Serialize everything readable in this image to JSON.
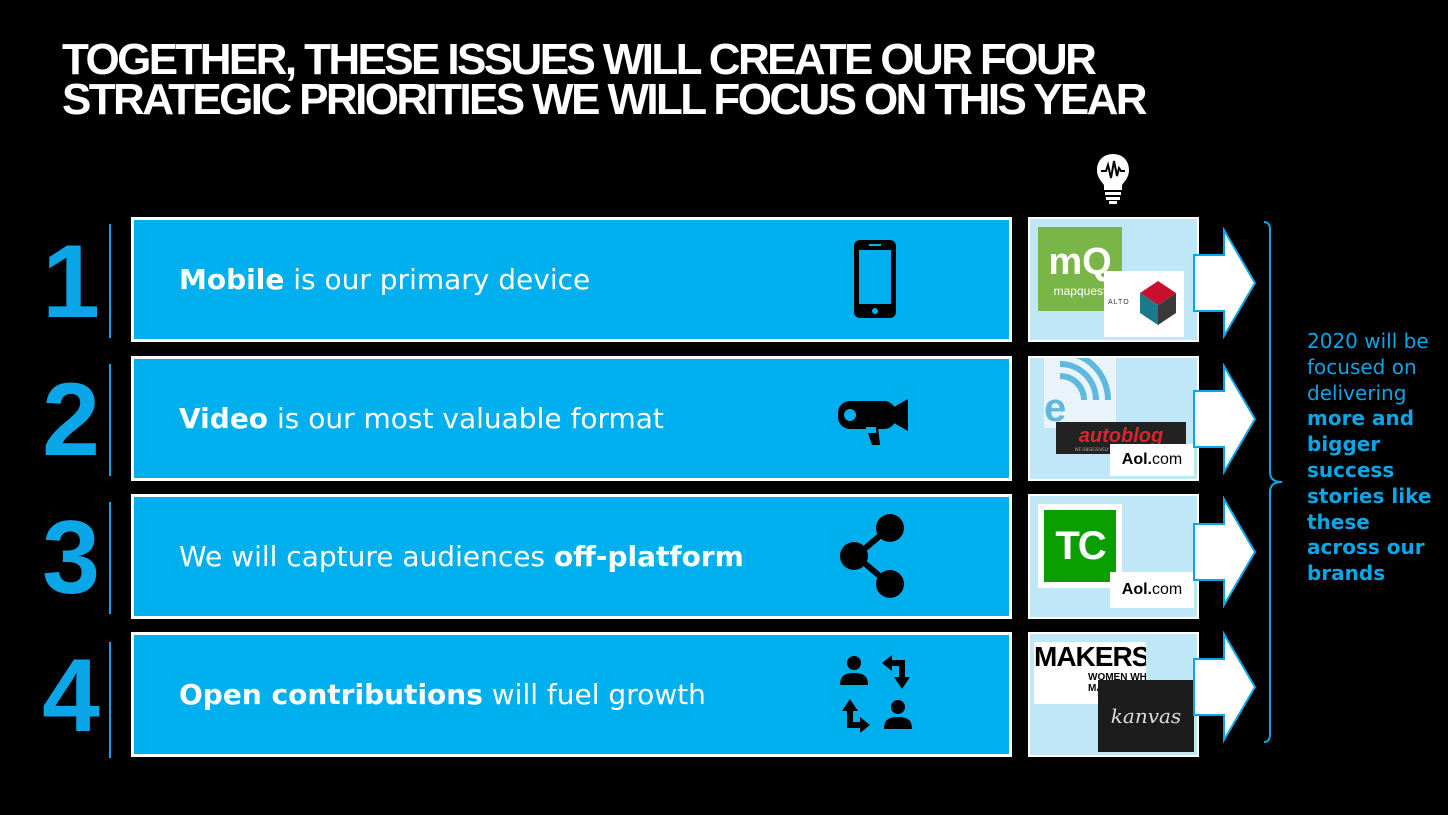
{
  "title": "TOGETHER, THESE ISSUES WILL CREATE OUR FOUR STRATEGIC PRIORITIES WE WILL FOCUS ON THIS YEAR",
  "priorities": [
    {
      "number": "1",
      "pre": "",
      "bold": "Mobile",
      "post": " is our primary device",
      "icon": "smartphone-icon"
    },
    {
      "number": "2",
      "pre": "",
      "bold": "Video",
      "post": " is our most valuable format",
      "icon": "video-camera-icon"
    },
    {
      "number": "3",
      "pre": "We will capture audiences ",
      "bold": "off-platform",
      "post": "",
      "icon": "share-icon"
    },
    {
      "number": "4",
      "pre": "",
      "bold": "Open contributions",
      "post": " will fuel growth",
      "icon": "user-exchange-icon"
    }
  ],
  "logos": {
    "mapquest_mark": "mQ",
    "mapquest_name": "mapquest",
    "alto_name": "ALTO",
    "engadget_mark": "e",
    "autoblog": "autoblog",
    "autoblog_tag": "WE OBSESSIVELY COVER THE AUTO INDUSTRY",
    "aol_a": "Aol.",
    "aol_b": "com",
    "techcrunch_mark": "TC",
    "makers": "MAKERS",
    "makers_sub": "WOMEN WHO MAKE AMERICA",
    "kanvas": "kanvas"
  },
  "side_note": {
    "intro": "2020 will be focused on delivering ",
    "bold": "more and bigger success stories like these across our brands"
  },
  "colors": {
    "background": "#000000",
    "bar": "#00b0ee",
    "accent": "#0aa6e8",
    "logo_bg": "#bfe7f7"
  },
  "bulb_icon": "lightbulb-icon"
}
